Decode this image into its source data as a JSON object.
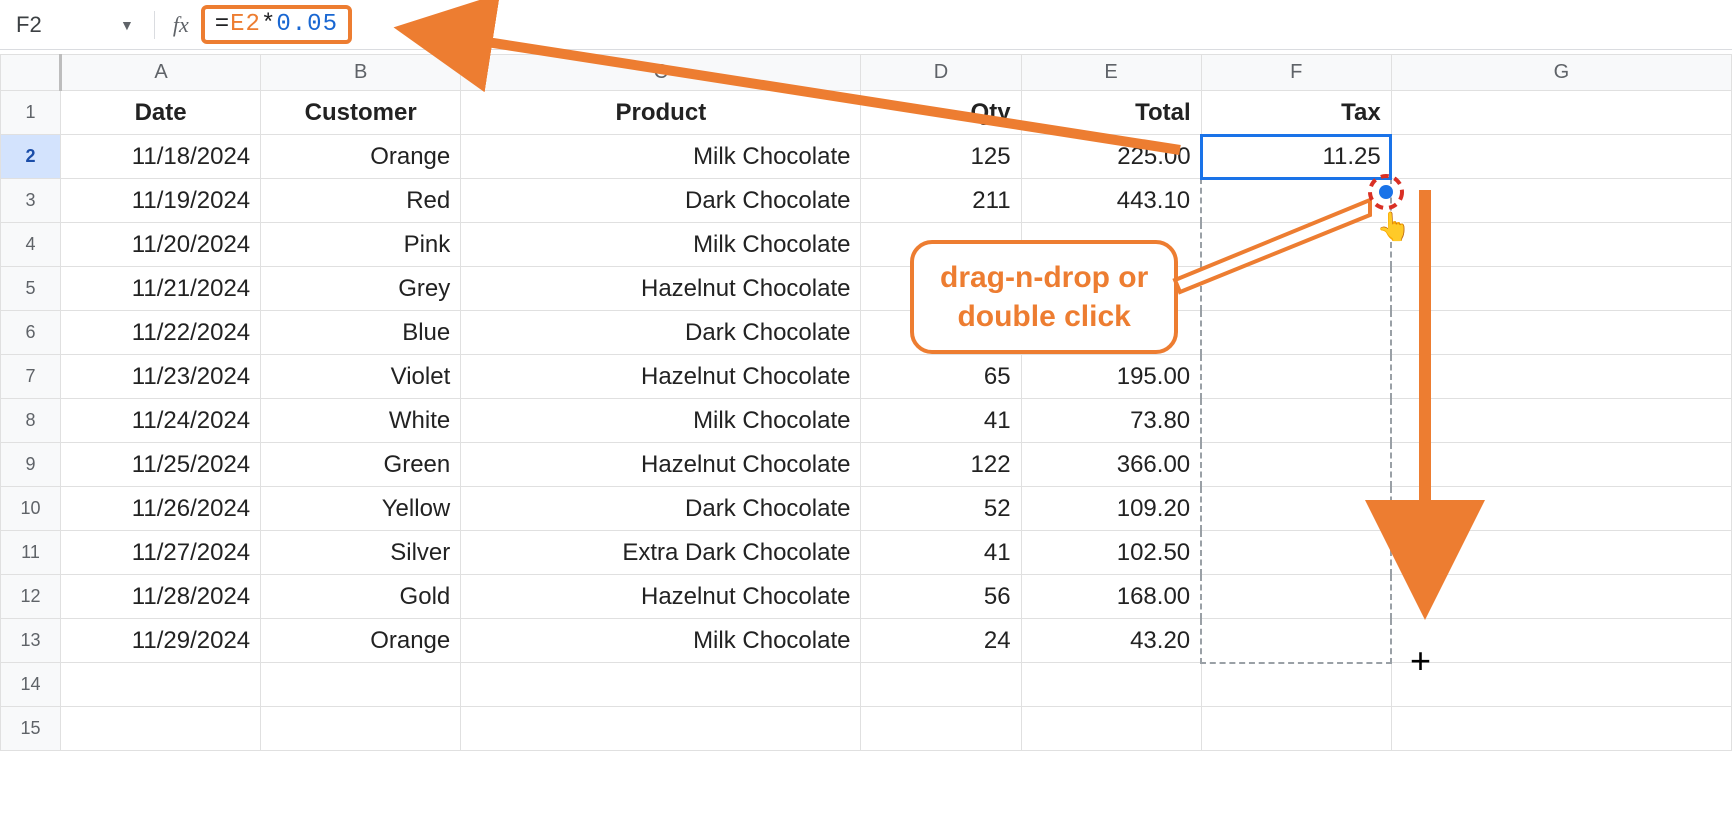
{
  "formula_bar": {
    "cell_ref": "F2",
    "fx_label": "fx",
    "formula_eq": "=",
    "formula_ref": "E2",
    "formula_op": "*",
    "formula_num": "0.05"
  },
  "columns": [
    "A",
    "B",
    "C",
    "D",
    "E",
    "F",
    "G"
  ],
  "header_row": {
    "A": "Date",
    "B": "Customer",
    "C": "Product",
    "D": "Qty",
    "E": "Total",
    "F": "Tax"
  },
  "rows": [
    {
      "n": "1"
    },
    {
      "n": "2",
      "A": "11/18/2024",
      "B": "Orange",
      "C": "Milk Chocolate",
      "D": "125",
      "E": "225.00",
      "F": "11.25"
    },
    {
      "n": "3",
      "A": "11/19/2024",
      "B": "Red",
      "C": "Dark Chocolate",
      "D": "211",
      "E": "443.10"
    },
    {
      "n": "4",
      "A": "11/20/2024",
      "B": "Pink",
      "C": "Milk Chocolate"
    },
    {
      "n": "5",
      "A": "11/21/2024",
      "B": "Grey",
      "C": "Hazelnut Chocolate"
    },
    {
      "n": "6",
      "A": "11/22/2024",
      "B": "Blue",
      "C": "Dark Chocolate"
    },
    {
      "n": "7",
      "A": "11/23/2024",
      "B": "Violet",
      "C": "Hazelnut Chocolate",
      "D": "65",
      "E": "195.00"
    },
    {
      "n": "8",
      "A": "11/24/2024",
      "B": "White",
      "C": "Milk Chocolate",
      "D": "41",
      "E": "73.80"
    },
    {
      "n": "9",
      "A": "11/25/2024",
      "B": "Green",
      "C": "Hazelnut Chocolate",
      "D": "122",
      "E": "366.00"
    },
    {
      "n": "10",
      "A": "11/26/2024",
      "B": "Yellow",
      "C": "Dark Chocolate",
      "D": "52",
      "E": "109.20"
    },
    {
      "n": "11",
      "A": "11/27/2024",
      "B": "Silver",
      "C": "Extra Dark Chocolate",
      "D": "41",
      "E": "102.50"
    },
    {
      "n": "12",
      "A": "11/28/2024",
      "B": "Gold",
      "C": "Hazelnut Chocolate",
      "D": "56",
      "E": "168.00"
    },
    {
      "n": "13",
      "A": "11/29/2024",
      "B": "Orange",
      "C": "Milk Chocolate",
      "D": "24",
      "E": "43.20"
    },
    {
      "n": "14"
    },
    {
      "n": "15"
    }
  ],
  "active_row": "2",
  "active_cell_col": "F",
  "callout": {
    "line1": "drag-n-drop or",
    "line2": "double click"
  },
  "colors": {
    "accent_orange": "#ed7d31",
    "selection_blue": "#1a73e8",
    "fill_handle_blue": "#1a73e8",
    "target_red": "#d93025",
    "header_bg": "#f8f9fa",
    "grid_line": "#e0e0e0"
  }
}
